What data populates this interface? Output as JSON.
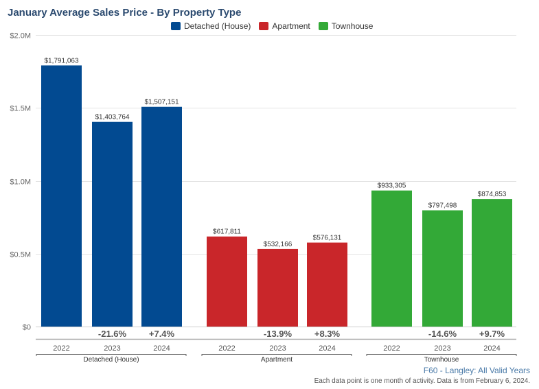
{
  "chart_data": {
    "type": "bar",
    "title": "January Average Sales Price - By Property Type",
    "xlabel": "",
    "ylabel": "",
    "ylim": [
      0,
      2000000
    ],
    "yticks": [
      {
        "value": 0,
        "label": "$0"
      },
      {
        "value": 500000,
        "label": "$0.5M"
      },
      {
        "value": 1000000,
        "label": "$1.0M"
      },
      {
        "value": 1500000,
        "label": "$1.5M"
      },
      {
        "value": 2000000,
        "label": "$2.0M"
      }
    ],
    "grid": true,
    "legend_position": "top-center",
    "groups": [
      {
        "name": "Detached (House)",
        "color": "#024a91",
        "categories": [
          "2022",
          "2023",
          "2024"
        ],
        "values": [
          1791063,
          1403764,
          1507151
        ],
        "value_labels": [
          "$1,791,063",
          "$1,403,764",
          "$1,507,151"
        ],
        "changes": [
          "",
          "-21.6%",
          "+7.4%"
        ]
      },
      {
        "name": "Apartment",
        "color": "#c9262a",
        "categories": [
          "2022",
          "2023",
          "2024"
        ],
        "values": [
          617811,
          532166,
          576131
        ],
        "value_labels": [
          "$617,811",
          "$532,166",
          "$576,131"
        ],
        "changes": [
          "",
          "-13.9%",
          "+8.3%"
        ]
      },
      {
        "name": "Townhouse",
        "color": "#33a937",
        "categories": [
          "2022",
          "2023",
          "2024"
        ],
        "values": [
          933305,
          797498,
          874853
        ],
        "value_labels": [
          "$933,305",
          "$797,498",
          "$874,853"
        ],
        "changes": [
          "",
          "-14.6%",
          "+9.7%"
        ]
      }
    ]
  },
  "legend": [
    {
      "label": "Detached (House)",
      "color": "#024a91"
    },
    {
      "label": "Apartment",
      "color": "#c9262a"
    },
    {
      "label": "Townhouse",
      "color": "#33a937"
    }
  ],
  "footer": {
    "source": "F60 - Langley: All Valid Years",
    "note": "Each data point is one month of activity. Data is from February 6, 2024."
  }
}
